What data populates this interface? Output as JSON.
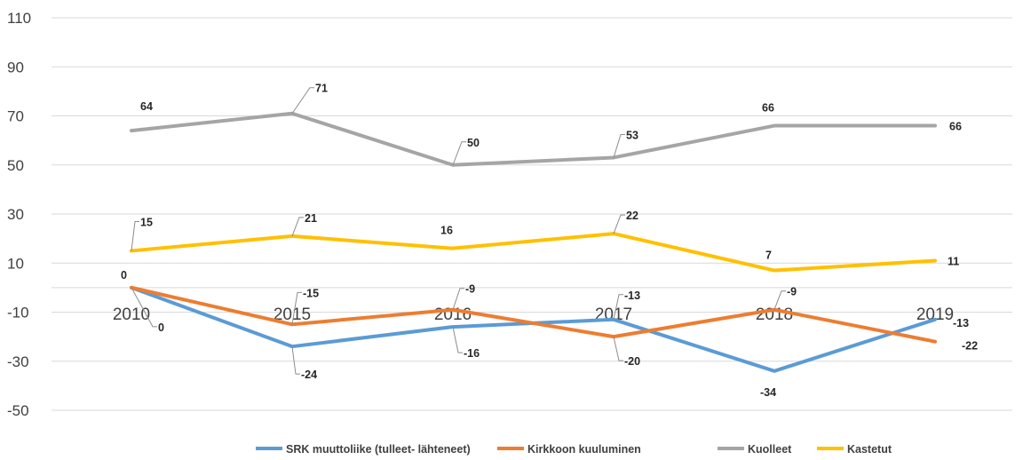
{
  "chart_data": {
    "type": "line",
    "categories": [
      "2010",
      "2015",
      "2016",
      "2017",
      "2018",
      "2019"
    ],
    "ylim": [
      -50,
      110
    ],
    "yticks": [
      110,
      90,
      70,
      50,
      30,
      10,
      -10,
      -30,
      -50
    ],
    "grid": true,
    "legend_position": "bottom",
    "series": [
      {
        "name": "SRK muuttoliike (tulleet- lähteneet)",
        "color": "#5b9bd5",
        "values": [
          0,
          -24,
          -16,
          -13,
          -34,
          -13
        ]
      },
      {
        "name": "Kirkkoon kuuluminen",
        "color": "#ed7d31",
        "values": [
          0,
          -15,
          -9,
          -20,
          -9,
          -22
        ]
      },
      {
        "name": "Kuolleet",
        "color": "#a5a5a5",
        "values": [
          64,
          71,
          50,
          53,
          66,
          66
        ]
      },
      {
        "name": "Kastetut",
        "color": "#ffc000",
        "values": [
          15,
          21,
          16,
          22,
          7,
          11
        ]
      }
    ]
  }
}
